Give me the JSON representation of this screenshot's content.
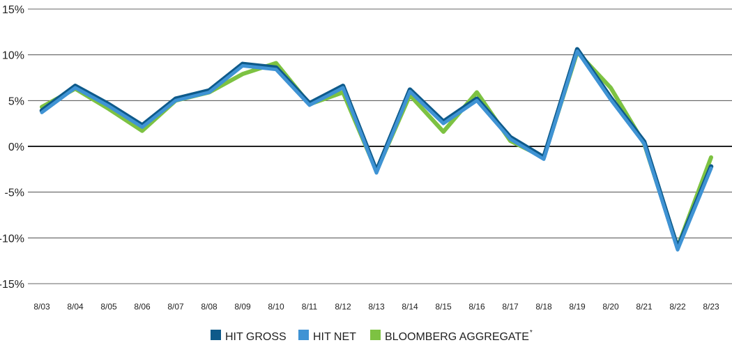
{
  "chart_data": {
    "type": "line",
    "title": "",
    "xlabel": "",
    "ylabel": "",
    "categories": [
      "8/03",
      "8/04",
      "8/05",
      "8/06",
      "8/07",
      "8/08",
      "8/09",
      "8/10",
      "8/11",
      "8/12",
      "8/13",
      "8/14",
      "8/15",
      "8/16",
      "8/17",
      "8/18",
      "8/19",
      "8/20",
      "8/21",
      "8/22",
      "8/23"
    ],
    "yticks": [
      15,
      10,
      5,
      0,
      -5,
      -10,
      -15
    ],
    "ytick_labels": [
      "15%",
      "10%",
      "5%",
      "0%",
      "-5%",
      "-10%",
      "-15%"
    ],
    "ylim": [
      -15,
      15
    ],
    "grid": true,
    "legend_position": "bottom",
    "series": [
      {
        "name": "BLOOMBERG AGGREGATE",
        "name_suffix": "*",
        "color": "#7dc242",
        "values": [
          4.3,
          6.3,
          4.1,
          1.7,
          5.0,
          5.9,
          7.9,
          9.1,
          4.6,
          5.9,
          -2.7,
          5.6,
          1.6,
          5.9,
          0.6,
          -1.2,
          10.3,
          6.4,
          0.3,
          -11.0,
          -1.2
        ]
      },
      {
        "name": "HIT GROSS",
        "name_suffix": "",
        "color": "#0e5a8a",
        "values": [
          3.9,
          6.6,
          4.6,
          2.3,
          5.2,
          6.1,
          9.0,
          8.6,
          4.7,
          6.6,
          -2.7,
          6.2,
          2.7,
          5.2,
          1.0,
          -1.2,
          10.6,
          5.3,
          0.5,
          -11.1,
          -2.2
        ]
      },
      {
        "name": "HIT NET",
        "name_suffix": "",
        "color": "#3f93d4",
        "values": [
          3.7,
          6.4,
          4.4,
          2.1,
          5.0,
          5.9,
          8.8,
          8.4,
          4.5,
          6.4,
          -2.9,
          6.0,
          2.5,
          5.0,
          0.8,
          -1.4,
          10.4,
          5.1,
          0.3,
          -11.3,
          -2.4
        ]
      }
    ],
    "legend": [
      {
        "name": "HIT GROSS",
        "suffix": "",
        "color": "#0e5a8a"
      },
      {
        "name": "HIT NET",
        "suffix": "",
        "color": "#3f93d4"
      },
      {
        "name": "BLOOMBERG AGGREGATE",
        "suffix": "*",
        "color": "#7dc242"
      }
    ]
  }
}
